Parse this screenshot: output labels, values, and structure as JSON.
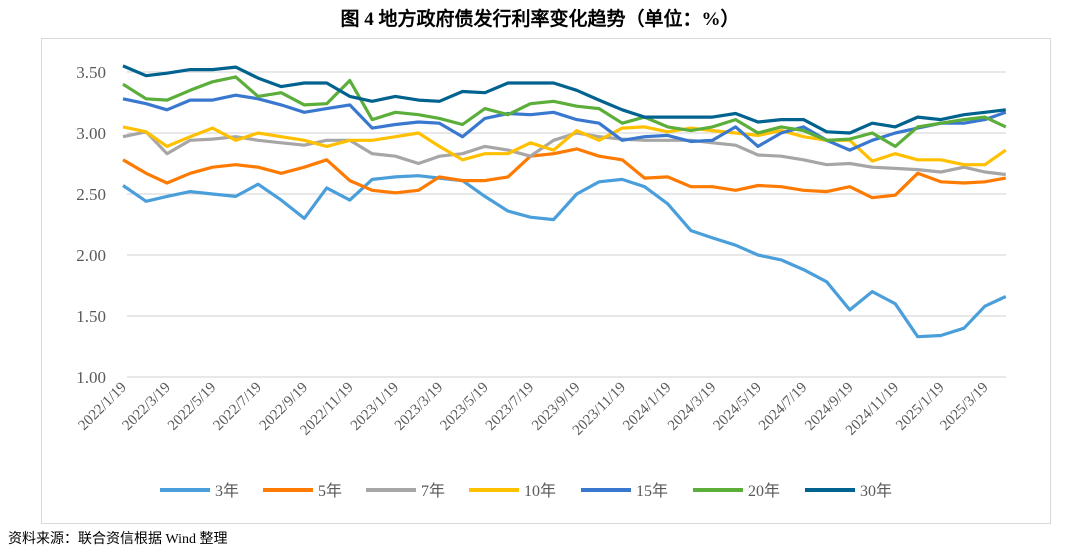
{
  "chart_data": {
    "type": "line",
    "title": "图 4  地方政府债发行利率变化趋势（单位：%）",
    "xlabel": "",
    "ylabel": "",
    "ylim": [
      1.0,
      3.5
    ],
    "yticks": [
      "1.00",
      "1.50",
      "2.00",
      "2.50",
      "3.00",
      "3.50"
    ],
    "xlim": [
      "2022-01-19",
      "2025-04-19"
    ],
    "xticks": [
      "2022/1/19",
      "2022/3/19",
      "2022/5/19",
      "2022/7/19",
      "2022/9/19",
      "2022/11/19",
      "2023/1/19",
      "2023/3/19",
      "2023/5/19",
      "2023/7/19",
      "2023/9/19",
      "2023/11/19",
      "2024/1/19",
      "2024/3/19",
      "2024/5/19",
      "2024/7/19",
      "2024/9/19",
      "2024/11/19",
      "2025/1/19",
      "2025/3/19"
    ],
    "grid": "horizontal",
    "legend_position": "bottom",
    "x": [
      "2022-01-19",
      "2022-02-19",
      "2022-03-19",
      "2022-04-19",
      "2022-05-19",
      "2022-06-19",
      "2022-07-19",
      "2022-08-19",
      "2022-09-19",
      "2022-10-19",
      "2022-11-19",
      "2022-12-19",
      "2023-01-19",
      "2023-02-19",
      "2023-03-19",
      "2023-04-19",
      "2023-05-19",
      "2023-06-19",
      "2023-07-19",
      "2023-08-19",
      "2023-09-19",
      "2023-10-19",
      "2023-11-19",
      "2023-12-19",
      "2024-01-19",
      "2024-02-19",
      "2024-03-19",
      "2024-04-19",
      "2024-05-19",
      "2024-06-19",
      "2024-07-19",
      "2024-08-19",
      "2024-09-19",
      "2024-10-19",
      "2024-11-19",
      "2024-12-19",
      "2025-01-19",
      "2025-02-19",
      "2025-03-19",
      "2025-04-16"
    ],
    "series": [
      {
        "name": "3年",
        "color": "#4A9FDB",
        "values": [
          2.57,
          2.44,
          2.48,
          2.52,
          2.5,
          2.48,
          2.58,
          2.45,
          2.3,
          2.55,
          2.45,
          2.62,
          2.64,
          2.65,
          2.63,
          2.61,
          2.48,
          2.36,
          2.31,
          2.29,
          2.5,
          2.6,
          2.62,
          2.56,
          2.42,
          2.2,
          2.14,
          2.08,
          2.0,
          1.96,
          1.88,
          1.78,
          1.55,
          1.7,
          1.6,
          1.33,
          1.34,
          1.4,
          1.58,
          1.66
        ]
      },
      {
        "name": "5年",
        "color": "#FF7A00",
        "values": [
          2.78,
          2.67,
          2.59,
          2.67,
          2.72,
          2.74,
          2.72,
          2.67,
          2.72,
          2.78,
          2.61,
          2.53,
          2.51,
          2.53,
          2.64,
          2.61,
          2.61,
          2.64,
          2.81,
          2.83,
          2.87,
          2.81,
          2.78,
          2.63,
          2.64,
          2.56,
          2.56,
          2.53,
          2.57,
          2.56,
          2.53,
          2.52,
          2.56,
          2.47,
          2.49,
          2.67,
          2.6,
          2.59,
          2.6,
          2.63
        ]
      },
      {
        "name": "7年",
        "color": "#A6A6A6",
        "values": [
          2.97,
          3.01,
          2.83,
          2.94,
          2.95,
          2.97,
          2.94,
          2.92,
          2.9,
          2.94,
          2.94,
          2.83,
          2.81,
          2.75,
          2.81,
          2.83,
          2.89,
          2.86,
          2.81,
          2.94,
          3.0,
          2.97,
          2.95,
          2.94,
          2.94,
          2.94,
          2.92,
          2.9,
          2.82,
          2.81,
          2.78,
          2.74,
          2.75,
          2.72,
          2.71,
          2.7,
          2.68,
          2.72,
          2.68,
          2.66
        ]
      },
      {
        "name": "10年",
        "color": "#FFC000",
        "values": [
          3.05,
          3.01,
          2.89,
          2.97,
          3.04,
          2.94,
          3.0,
          2.97,
          2.94,
          2.89,
          2.94,
          2.94,
          2.97,
          3.0,
          2.89,
          2.78,
          2.83,
          2.83,
          2.92,
          2.86,
          3.02,
          2.94,
          3.04,
          3.05,
          3.01,
          3.04,
          3.02,
          3.0,
          2.98,
          3.02,
          2.97,
          2.94,
          2.94,
          2.77,
          2.83,
          2.78,
          2.78,
          2.74,
          2.74,
          2.86
        ]
      },
      {
        "name": "15年",
        "color": "#3A78CF",
        "values": [
          3.28,
          3.24,
          3.19,
          3.27,
          3.27,
          3.31,
          3.28,
          3.23,
          3.17,
          3.2,
          3.23,
          3.04,
          3.07,
          3.09,
          3.08,
          2.97,
          3.12,
          3.16,
          3.15,
          3.17,
          3.11,
          3.08,
          2.94,
          2.97,
          2.98,
          2.93,
          2.94,
          3.05,
          2.89,
          3.0,
          3.05,
          2.94,
          2.86,
          2.94,
          3.0,
          3.04,
          3.08,
          3.08,
          3.11,
          3.17
        ]
      },
      {
        "name": "20年",
        "color": "#5BAE3A",
        "values": [
          3.4,
          3.28,
          3.27,
          3.35,
          3.42,
          3.46,
          3.3,
          3.33,
          3.23,
          3.24,
          3.43,
          3.11,
          3.17,
          3.15,
          3.12,
          3.07,
          3.2,
          3.15,
          3.24,
          3.26,
          3.22,
          3.2,
          3.08,
          3.13,
          3.05,
          3.02,
          3.05,
          3.11,
          3.0,
          3.05,
          3.02,
          2.94,
          2.95,
          3.0,
          2.89,
          3.05,
          3.08,
          3.11,
          3.13,
          3.05
        ]
      },
      {
        "name": "30年",
        "color": "#00628F",
        "values": [
          3.55,
          3.47,
          3.49,
          3.52,
          3.52,
          3.54,
          3.45,
          3.38,
          3.41,
          3.41,
          3.3,
          3.26,
          3.3,
          3.27,
          3.26,
          3.34,
          3.33,
          3.41,
          3.41,
          3.41,
          3.35,
          3.27,
          3.19,
          3.13,
          3.13,
          3.13,
          3.13,
          3.16,
          3.09,
          3.11,
          3.11,
          3.01,
          3.0,
          3.08,
          3.05,
          3.13,
          3.11,
          3.15,
          3.17,
          3.19
        ]
      }
    ]
  },
  "source": "资料来源：联合资信根据 Wind 整理"
}
